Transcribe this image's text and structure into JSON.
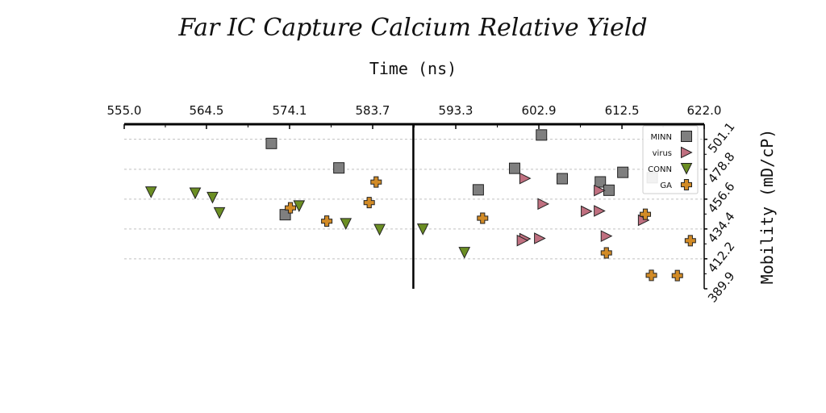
{
  "chart_data": {
    "type": "scatter",
    "title": "Far IC Capture Calcium Relative Yield",
    "xlabel": "Time (ns)",
    "ylabel": "Mobility (mD/cP)",
    "xlim": [
      555.0,
      622.0
    ],
    "ylim": [
      389.9,
      512.3
    ],
    "x_ticks": [
      "555.0",
      "564.5",
      "574.1",
      "583.7",
      "593.3",
      "602.9",
      "612.5",
      "622.0"
    ],
    "y_ticks": [
      "389.9",
      "412.2",
      "434.4",
      "456.6",
      "478.8",
      "501.1"
    ],
    "x_axis_position": "top",
    "y_axis_position": "right",
    "grid": "horizontal dashed",
    "reference_line_x": 588.4,
    "legend_position": "top-right",
    "series": [
      {
        "name": "MINN",
        "color": "#7f7f7f",
        "marker": "square",
        "points": [
          [
            572.0,
            498.0
          ],
          [
            603.2,
            504.3
          ],
          [
            579.8,
            479.8
          ],
          [
            600.1,
            479.5
          ],
          [
            605.6,
            471.8
          ],
          [
            595.9,
            463.5
          ],
          [
            610.0,
            469.4
          ],
          [
            612.6,
            476.5
          ],
          [
            616.0,
            472.5
          ],
          [
            611.0,
            463.2
          ],
          [
            573.6,
            445.0
          ]
        ]
      },
      {
        "name": "virus",
        "color": "#c07080",
        "marker": "triangle-right",
        "points": [
          [
            601.3,
            472.0
          ],
          [
            609.9,
            463.0
          ],
          [
            603.4,
            453.0
          ],
          [
            608.4,
            447.5
          ],
          [
            609.9,
            447.8
          ],
          [
            615.0,
            440.9
          ],
          [
            601.3,
            427.1
          ],
          [
            603.0,
            427.4
          ],
          [
            610.7,
            429.1
          ],
          [
            601.0,
            425.8
          ]
        ]
      },
      {
        "name": "CONN",
        "color": "#6b8e23",
        "marker": "triangle-down",
        "points": [
          [
            558.1,
            461.8
          ],
          [
            563.2,
            461.0
          ],
          [
            565.2,
            457.8
          ],
          [
            566.0,
            446.4
          ],
          [
            575.2,
            451.5
          ],
          [
            580.6,
            438.3
          ],
          [
            584.5,
            433.9
          ],
          [
            589.5,
            434.2
          ],
          [
            594.3,
            416.8
          ]
        ]
      },
      {
        "name": "GA",
        "color": "#d28b26",
        "marker": "plus",
        "points": [
          [
            584.1,
            469.3
          ],
          [
            583.3,
            454.0
          ],
          [
            574.2,
            450.1
          ],
          [
            578.4,
            440.2
          ],
          [
            596.4,
            442.4
          ],
          [
            615.2,
            445.3
          ],
          [
            610.7,
            416.6
          ],
          [
            615.9,
            399.9
          ],
          [
            618.9,
            399.7
          ],
          [
            620.4,
            425.7
          ]
        ]
      }
    ]
  }
}
